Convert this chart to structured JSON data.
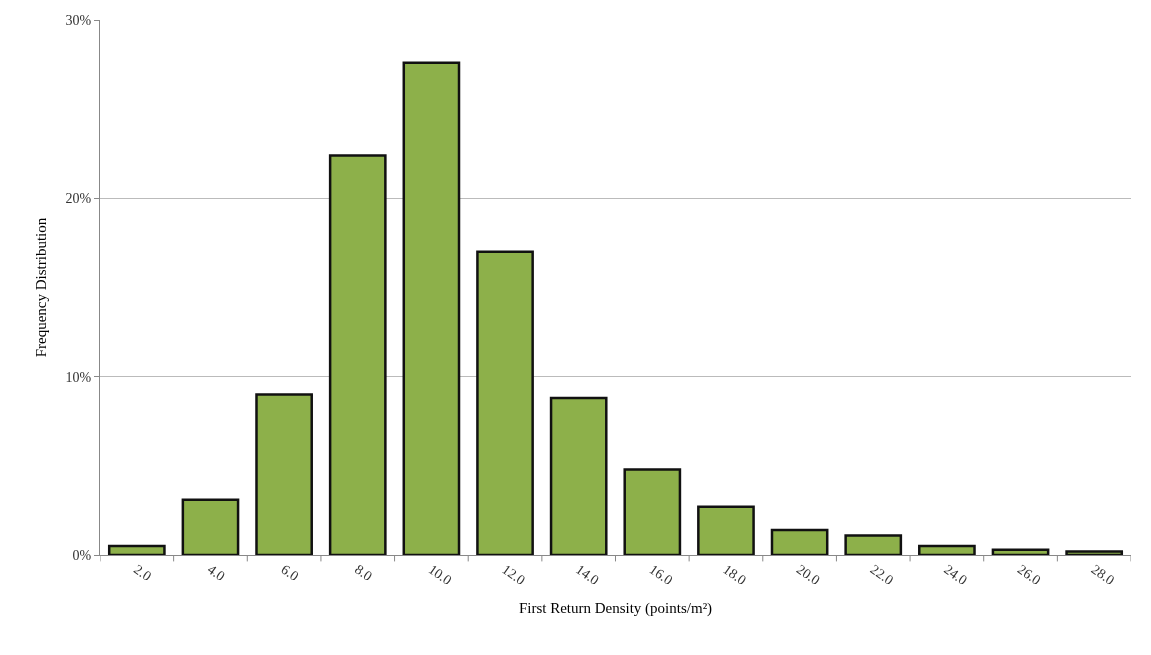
{
  "chart_data": {
    "type": "bar",
    "xlabel": "First Return Density (points/m²)",
    "ylabel": "Frequency Distribution",
    "categories": [
      "2.0",
      "4.0",
      "6.0",
      "8.0",
      "10.0",
      "12.0",
      "14.0",
      "16.0",
      "18.0",
      "20.0",
      "22.0",
      "24.0",
      "26.0",
      "28.0"
    ],
    "values": [
      0.5,
      3.1,
      9.0,
      22.4,
      27.6,
      17.0,
      8.8,
      4.8,
      2.7,
      1.4,
      1.1,
      0.5,
      0.3,
      0.2
    ],
    "color": "#8db04a",
    "ylim": [
      0,
      30
    ],
    "yticks": [
      {
        "value": 0,
        "label": "0%"
      },
      {
        "value": 10,
        "label": "10%"
      },
      {
        "value": 20,
        "label": "20%"
      },
      {
        "value": 30,
        "label": "30%"
      }
    ],
    "grid": "y",
    "legend": false
  }
}
